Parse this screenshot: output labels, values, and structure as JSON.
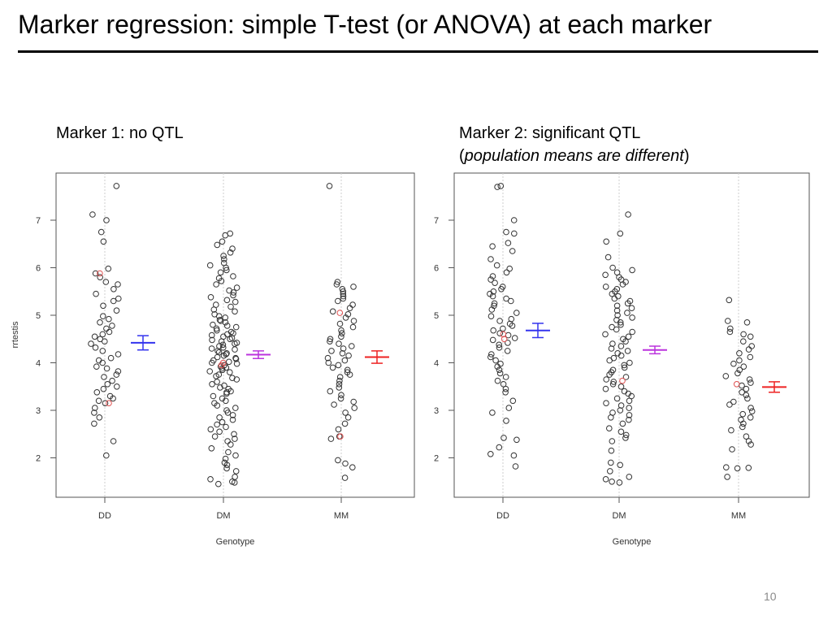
{
  "slide": {
    "title": "Marker regression:  simple T-test (or ANOVA) at each marker",
    "page_number": "10"
  },
  "captions": {
    "left": "Marker 1:  no QTL",
    "right_line1": "Marker 2:  significant QTL",
    "right_paren_open": "(",
    "right_italic": "population means are different",
    "right_paren_close": ")"
  },
  "colors": {
    "point": "#333333",
    "highlight_point": "#e05050",
    "dd_mean": "#3333ee",
    "dm_mean": "#bb33dd",
    "mm_mean": "#ee2222",
    "guide_line": "#cccccc"
  },
  "chart_data": [
    {
      "type": "scatter",
      "title": "",
      "xlabel": "Genotype",
      "ylabel": "rrtestis",
      "categories": [
        "DD",
        "DM",
        "MM"
      ],
      "ylim": [
        1.4,
        7.95
      ],
      "yticks": [
        2,
        3,
        4,
        5,
        6,
        7
      ],
      "means": [
        {
          "category": "DD",
          "mean": 4.42,
          "lower": 4.27,
          "upper": 4.57
        },
        {
          "category": "DM",
          "mean": 4.17,
          "lower": 4.09,
          "upper": 4.25
        },
        {
          "category": "MM",
          "mean": 4.12,
          "lower": 3.99,
          "upper": 4.25
        }
      ],
      "series": [
        {
          "category": "DD",
          "points": [
            7.72,
            7.12,
            7.0,
            6.75,
            6.55,
            5.98,
            5.88,
            5.8,
            5.7,
            5.65,
            5.55,
            5.45,
            5.35,
            5.3,
            5.2,
            5.1,
            4.98,
            4.92,
            4.85,
            4.78,
            4.72,
            4.65,
            4.6,
            4.55,
            4.5,
            4.45,
            4.4,
            4.32,
            4.25,
            4.18,
            4.1,
            4.05,
            4.0,
            3.92,
            3.88,
            3.82,
            3.75,
            3.7,
            3.62,
            3.55,
            3.5,
            3.45,
            3.38,
            3.3,
            3.25,
            3.2,
            3.15,
            3.05,
            2.95,
            2.85,
            2.72,
            2.35,
            2.05
          ],
          "highlight": [
            5.88,
            3.15
          ]
        },
        {
          "category": "DM",
          "points": [
            6.72,
            6.68,
            6.55,
            6.48,
            6.4,
            6.32,
            6.25,
            6.18,
            6.1,
            6.05,
            6.0,
            5.95,
            5.9,
            5.82,
            5.78,
            5.72,
            5.65,
            5.58,
            5.52,
            5.48,
            5.42,
            5.38,
            5.32,
            5.28,
            5.22,
            5.18,
            5.12,
            5.08,
            5.02,
            4.98,
            4.95,
            4.9,
            4.88,
            4.85,
            4.8,
            4.78,
            4.75,
            4.72,
            4.68,
            4.65,
            4.62,
            4.6,
            4.58,
            4.55,
            4.52,
            4.5,
            4.48,
            4.45,
            4.42,
            4.4,
            4.38,
            4.35,
            4.32,
            4.3,
            4.28,
            4.25,
            4.22,
            4.2,
            4.18,
            4.15,
            4.12,
            4.1,
            4.08,
            4.05,
            4.02,
            4.0,
            3.98,
            3.95,
            3.92,
            3.9,
            3.88,
            3.85,
            3.82,
            3.8,
            3.75,
            3.72,
            3.68,
            3.65,
            3.6,
            3.55,
            3.52,
            3.48,
            3.45,
            3.4,
            3.38,
            3.35,
            3.3,
            3.25,
            3.2,
            3.15,
            3.1,
            3.05,
            3.0,
            2.95,
            2.9,
            2.85,
            2.8,
            2.75,
            2.7,
            2.65,
            2.6,
            2.55,
            2.5,
            2.45,
            2.4,
            2.35,
            2.28,
            2.2,
            2.12,
            2.05,
            1.98,
            1.9,
            1.85,
            1.78,
            1.72,
            1.6,
            1.55,
            1.5,
            1.48,
            1.45
          ],
          "highlight": [
            4.0,
            3.95
          ]
        },
        {
          "category": "MM",
          "points": [
            7.72,
            5.7,
            5.65,
            5.6,
            5.55,
            5.5,
            5.45,
            5.4,
            5.35,
            5.3,
            5.22,
            5.15,
            5.08,
            5.02,
            4.95,
            4.88,
            4.82,
            4.75,
            4.68,
            4.62,
            4.55,
            4.5,
            4.45,
            4.4,
            4.35,
            4.3,
            4.25,
            4.2,
            4.15,
            4.1,
            4.05,
            4.0,
            3.95,
            3.9,
            3.85,
            3.8,
            3.75,
            3.7,
            3.62,
            3.55,
            3.48,
            3.4,
            3.32,
            3.25,
            3.18,
            3.12,
            3.05,
            2.95,
            2.85,
            2.72,
            2.6,
            2.45,
            2.4,
            1.95,
            1.88,
            1.8,
            1.58
          ],
          "highlight": [
            5.05,
            2.45
          ]
        }
      ]
    },
    {
      "type": "scatter",
      "title": "",
      "xlabel": "Genotype",
      "ylabel": "",
      "categories": [
        "DD",
        "DM",
        "MM"
      ],
      "ylim": [
        1.4,
        7.95
      ],
      "yticks": [
        2,
        3,
        4,
        5,
        6,
        7
      ],
      "means": [
        {
          "category": "DD",
          "mean": 4.68,
          "lower": 4.53,
          "upper": 4.83
        },
        {
          "category": "DM",
          "mean": 4.27,
          "lower": 4.19,
          "upper": 4.35
        },
        {
          "category": "MM",
          "mean": 3.49,
          "lower": 3.38,
          "upper": 3.6
        }
      ],
      "series": [
        {
          "category": "DD",
          "points": [
            7.72,
            7.7,
            7.0,
            6.75,
            6.72,
            6.52,
            6.45,
            6.35,
            6.18,
            6.05,
            5.98,
            5.9,
            5.82,
            5.75,
            5.68,
            5.6,
            5.55,
            5.5,
            5.45,
            5.4,
            5.35,
            5.3,
            5.25,
            5.2,
            5.12,
            5.05,
            4.98,
            4.92,
            4.88,
            4.82,
            4.78,
            4.72,
            4.68,
            4.62,
            4.58,
            4.52,
            4.48,
            4.42,
            4.38,
            4.32,
            4.25,
            4.18,
            4.12,
            4.05,
            3.98,
            3.92,
            3.85,
            3.78,
            3.7,
            3.62,
            3.55,
            3.45,
            3.38,
            3.2,
            3.05,
            2.95,
            2.78,
            2.42,
            2.38,
            2.22,
            2.08,
            2.05,
            1.82
          ],
          "highlight": [
            4.6,
            4.5
          ]
        },
        {
          "category": "DM",
          "points": [
            7.12,
            6.72,
            6.55,
            6.22,
            6.0,
            5.95,
            5.9,
            5.85,
            5.8,
            5.75,
            5.7,
            5.65,
            5.6,
            5.55,
            5.5,
            5.45,
            5.4,
            5.35,
            5.3,
            5.25,
            5.2,
            5.15,
            5.1,
            5.05,
            5.0,
            4.95,
            4.9,
            4.85,
            4.8,
            4.75,
            4.7,
            4.65,
            4.6,
            4.55,
            4.5,
            4.45,
            4.4,
            4.35,
            4.3,
            4.25,
            4.2,
            4.15,
            4.1,
            4.05,
            4.0,
            3.95,
            3.9,
            3.85,
            3.8,
            3.75,
            3.7,
            3.65,
            3.6,
            3.55,
            3.5,
            3.45,
            3.4,
            3.35,
            3.3,
            3.25,
            3.2,
            3.15,
            3.1,
            3.05,
            3.0,
            2.95,
            2.9,
            2.85,
            2.8,
            2.72,
            2.62,
            2.55,
            2.48,
            2.42,
            2.35,
            2.15,
            1.9,
            1.85,
            1.72,
            1.6,
            1.55,
            1.5,
            1.48
          ],
          "highlight": [
            3.62
          ]
        },
        {
          "category": "MM",
          "points": [
            5.32,
            4.88,
            4.85,
            4.72,
            4.65,
            4.6,
            4.55,
            4.45,
            4.35,
            4.28,
            4.2,
            4.12,
            4.05,
            3.98,
            3.92,
            3.85,
            3.78,
            3.72,
            3.65,
            3.58,
            3.52,
            3.45,
            3.38,
            3.32,
            3.25,
            3.18,
            3.12,
            3.05,
            2.98,
            2.92,
            2.85,
            2.8,
            2.72,
            2.65,
            2.58,
            2.45,
            2.35,
            2.28,
            2.18,
            1.8,
            1.79,
            1.78,
            1.6
          ],
          "highlight": [
            3.55
          ]
        }
      ]
    }
  ]
}
